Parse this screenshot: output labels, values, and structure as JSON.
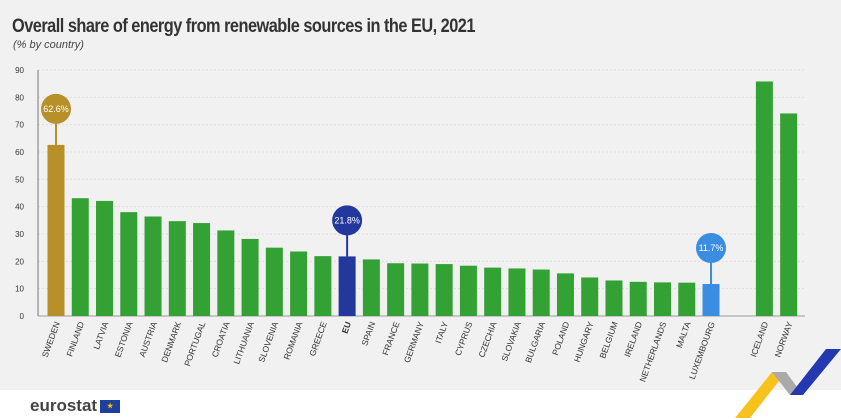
{
  "chart_data": {
    "type": "bar",
    "title": "Overall share of energy from renewable sources in the EU, 2021",
    "subtitle": "(% by country)",
    "ylim": [
      0,
      90
    ],
    "yticks": [
      0,
      10,
      20,
      30,
      40,
      50,
      60,
      70,
      80,
      90
    ],
    "grid": true,
    "categories": [
      "SWEDEN",
      "FINLAND",
      "LATVIA",
      "ESTONIA",
      "AUSTRIA",
      "DENMARK",
      "PORTUGAL",
      "CROATIA",
      "LITHUANIA",
      "SLOVENIA",
      "ROMANIA",
      "GREECE",
      "EU",
      "SPAIN",
      "FRANCE",
      "GERMANY",
      "ITALY",
      "CYPRUS",
      "CZECHIA",
      "SLOVAKIA",
      "BULGARIA",
      "POLAND",
      "HUNGARY",
      "BELGIUM",
      "IRELAND",
      "NETHERLANDS",
      "MALTA",
      "LUXEMBOURG",
      "ICELAND",
      "NORWAY"
    ],
    "values": [
      62.6,
      43.1,
      42.1,
      38.0,
      36.4,
      34.7,
      34.0,
      31.3,
      28.2,
      25.0,
      23.6,
      21.9,
      21.8,
      20.7,
      19.3,
      19.2,
      19.0,
      18.4,
      17.7,
      17.4,
      17.0,
      15.6,
      14.1,
      13.0,
      12.5,
      12.3,
      12.2,
      11.7,
      85.8,
      74.1
    ],
    "callouts": [
      {
        "category": "SWEDEN",
        "label": "62.6%",
        "color": "#b8902a"
      },
      {
        "category": "EU",
        "label": "21.8%",
        "color": "#23389c"
      },
      {
        "category": "LUXEMBOURG",
        "label": "11.7%",
        "color": "#3a8de0"
      }
    ],
    "colors": {
      "default": "#34a134",
      "SWEDEN": "#b8902a",
      "EU": "#23389c",
      "LUXEMBOURG": "#3a8de0"
    }
  },
  "footer": {
    "logo": "eurostat"
  }
}
